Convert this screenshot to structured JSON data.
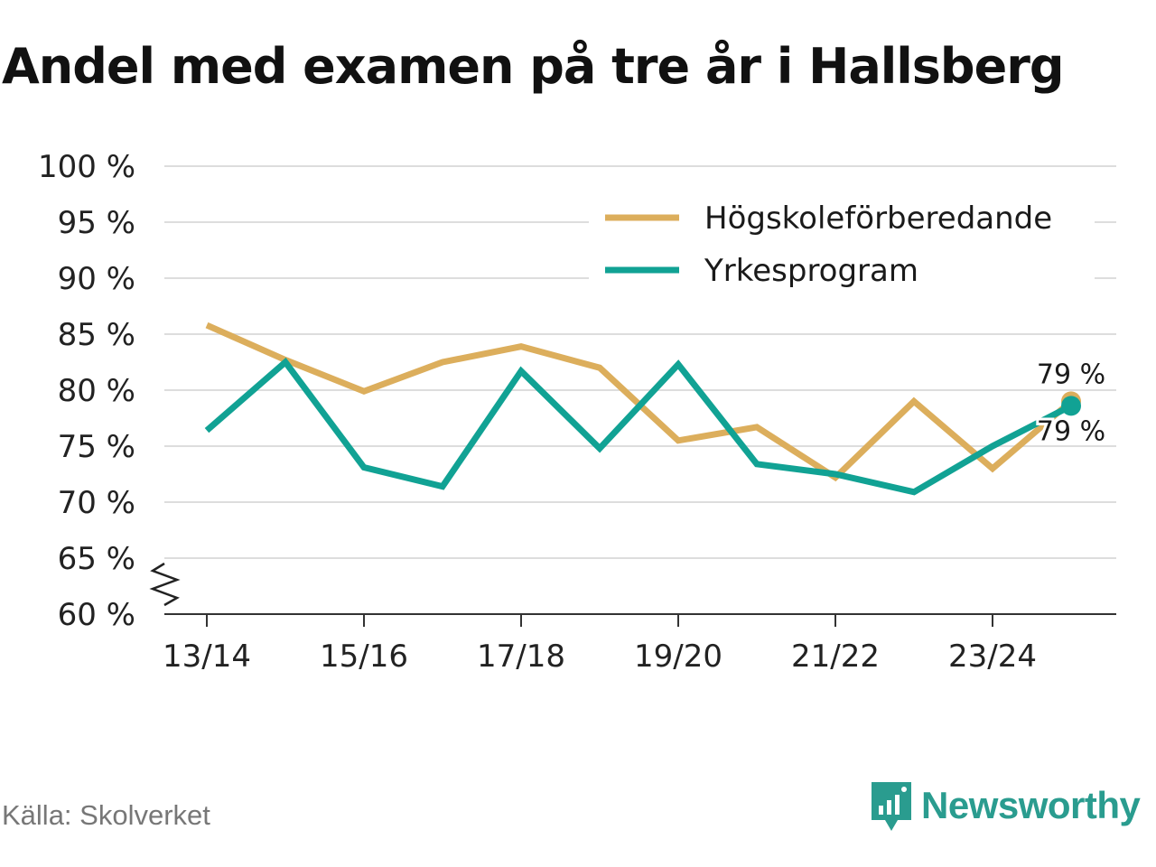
{
  "header": {
    "title": "Andel med examen på tre år i Hallsberg"
  },
  "footer": {
    "source": "Källa: Skolverket",
    "brand": "Newsworthy"
  },
  "colors": {
    "series1": "#dcae5c",
    "series2": "#11a294",
    "grid": "#dddddd",
    "axis": "#333333"
  },
  "icons": {
    "brand_logo": "newsworthy-logo-icon",
    "axis_break": "axis-break-icon"
  },
  "chart_data": {
    "type": "line",
    "title": "Andel med examen på tre år i Hallsberg",
    "xlabel": "",
    "ylabel": "",
    "ylim": [
      60,
      100
    ],
    "y_ticks": [
      60,
      65,
      70,
      75,
      80,
      85,
      90,
      95,
      100
    ],
    "y_tick_labels": [
      "60 %",
      "65 %",
      "70 %",
      "75 %",
      "80 %",
      "85 %",
      "90 %",
      "95 %",
      "100 %"
    ],
    "x_ticks": [
      "13/14",
      "15/16",
      "17/18",
      "19/20",
      "21/22",
      "23/24"
    ],
    "categories": [
      "13/14",
      "14/15",
      "15/16",
      "16/17",
      "17/18",
      "18/19",
      "19/20",
      "20/21",
      "21/22",
      "22/23",
      "23/24",
      "24/25"
    ],
    "series": [
      {
        "name": "Högskoleförberedande",
        "values": [
          85.8,
          82.7,
          79.9,
          82.5,
          83.9,
          82.0,
          75.5,
          76.7,
          72.2,
          79.0,
          73.0,
          79.0
        ]
      },
      {
        "name": "Yrkesprogram",
        "values": [
          76.4,
          82.5,
          73.1,
          71.4,
          81.7,
          74.8,
          82.3,
          73.4,
          72.5,
          70.9,
          75.0,
          78.6
        ]
      }
    ],
    "end_labels": [
      "79 %",
      "79 %"
    ],
    "legend": "top-right",
    "grid": true,
    "axis_break": true
  }
}
